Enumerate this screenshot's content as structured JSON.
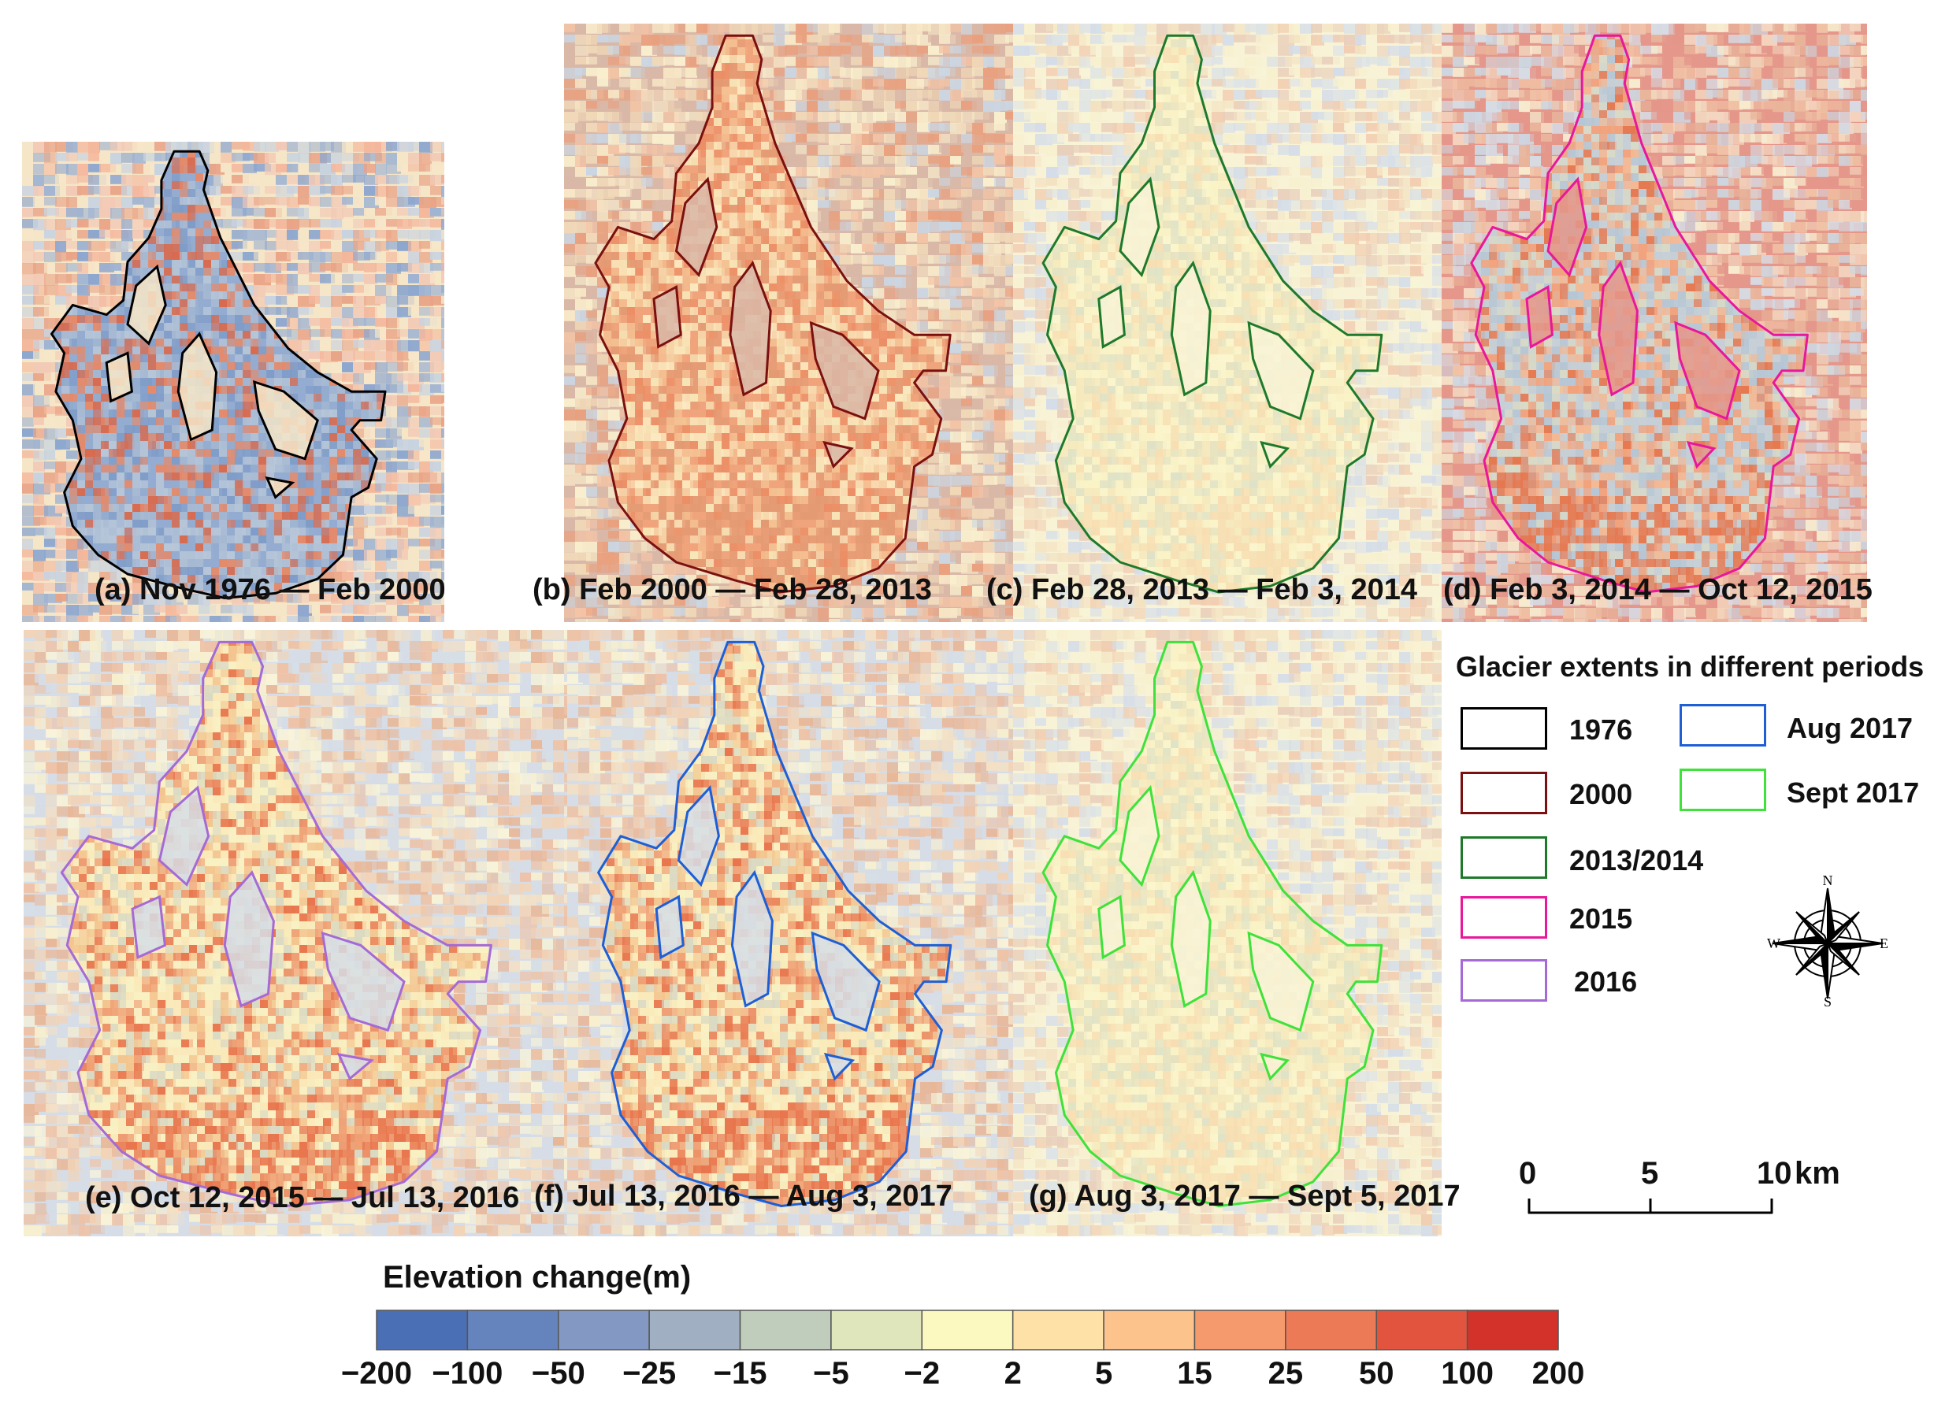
{
  "panels": [
    {
      "id": "a",
      "caption": "(a) Nov 1976 — Feb 2000",
      "outline_color": "#000000",
      "tone": "blue"
    },
    {
      "id": "b",
      "caption": "(b) Feb 2000 —  Feb 28, 2013",
      "outline_color": "#7a1010",
      "tone": "red"
    },
    {
      "id": "c",
      "caption": "(c) Feb 28, 2013 —  Feb 3, 2014",
      "outline_color": "#1e7a2a",
      "tone": "yellow"
    },
    {
      "id": "d",
      "caption": "(d) Feb 3, 2014 —  Oct 12, 2015",
      "outline_color": "#e8179b",
      "tone": "mixed"
    },
    {
      "id": "e",
      "caption": "(e) Oct 12, 2015 —  Jul 13, 2016",
      "outline_color": "#a56ad6",
      "tone": "orange"
    },
    {
      "id": "f",
      "caption": "(f) Jul 13, 2016 —  Aug 3, 2017",
      "outline_color": "#1e5fd6",
      "tone": "orange"
    },
    {
      "id": "g",
      "caption": "(g) Aug 3, 2017 —  Sept 5, 2017",
      "outline_color": "#3ee23a",
      "tone": "yellow"
    }
  ],
  "legend": {
    "title": "Glacier extents in different periods",
    "items": [
      {
        "label": "1976",
        "color": "#000000"
      },
      {
        "label": "2000",
        "color": "#7a1010"
      },
      {
        "label": "2013/2014",
        "color": "#1e7a2a"
      },
      {
        "label": "2015",
        "color": "#e8179b"
      },
      {
        "label": "2016",
        "color": "#a56ad6"
      },
      {
        "label": "Aug 2017",
        "color": "#1e5fd6"
      },
      {
        "label": "Sept 2017",
        "color": "#3ee23a"
      }
    ]
  },
  "compass": {
    "n": "N",
    "s": "S",
    "e": "E",
    "w": "W"
  },
  "scale_bar": {
    "labels": [
      "0",
      "5",
      "10"
    ],
    "unit": "km"
  },
  "colorbar": {
    "title": "Elevation change(m)",
    "ticks": [
      "−200",
      "−100",
      "−50",
      "−25",
      "−15",
      "−5",
      "−2",
      "2",
      "5",
      "15",
      "25",
      "50",
      "100",
      "200"
    ],
    "colors": [
      "#4a6fb5",
      "#6584bd",
      "#8399c3",
      "#a0b0c2",
      "#c0ccbc",
      "#dfe6bc",
      "#fbf8c0",
      "#fde1a6",
      "#fcc38c",
      "#f59a6c",
      "#ec7a56",
      "#e2543e",
      "#d23229"
    ]
  }
}
